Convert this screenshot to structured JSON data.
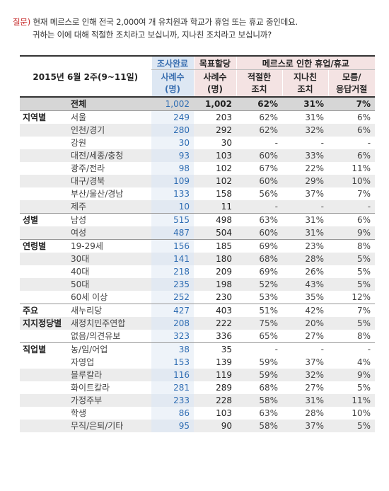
{
  "question": {
    "prefix": "질문)",
    "line1": "현재 메르스로 인해 전국 2,000여 개 유치원과 학교가 휴업 또는 휴교 중인데요.",
    "line2": "귀하는 이에 대해 적절한 조치라고 보십니까, 지나친 조치라고 보십니까?"
  },
  "header": {
    "date": "2015년 6월 2주(9~11일)",
    "col_done_top": "조사완료",
    "col_done_sub": "사례수",
    "col_done_unit": "(명)",
    "col_target_top": "목표할당",
    "col_target_sub": "사례수",
    "col_target_unit": "(명)",
    "group_title": "메르스로 인한 휴업/휴교",
    "resp1_a": "적절한",
    "resp1_b": "조치",
    "resp2_a": "지나친",
    "resp2_b": "조치",
    "resp3_a": "모름/",
    "resp3_b": "응답거절"
  },
  "rows": [
    {
      "group": "",
      "label": "전체",
      "n1": "1,002",
      "n2": "1,002",
      "p1": "62%",
      "p2": "31%",
      "p3": "7%"
    },
    {
      "group": "지역별",
      "label": "서울",
      "n1": "249",
      "n2": "203",
      "p1": "62%",
      "p2": "31%",
      "p3": "6%"
    },
    {
      "group": "",
      "label": "인천/경기",
      "n1": "280",
      "n2": "292",
      "p1": "62%",
      "p2": "32%",
      "p3": "6%"
    },
    {
      "group": "",
      "label": "강원",
      "n1": "30",
      "n2": "30",
      "p1": "-",
      "p2": "-",
      "p3": "-"
    },
    {
      "group": "",
      "label": "대전/세종/충청",
      "n1": "93",
      "n2": "103",
      "p1": "60%",
      "p2": "33%",
      "p3": "6%"
    },
    {
      "group": "",
      "label": "광주/전라",
      "n1": "98",
      "n2": "102",
      "p1": "67%",
      "p2": "22%",
      "p3": "11%"
    },
    {
      "group": "",
      "label": "대구/경북",
      "n1": "109",
      "n2": "102",
      "p1": "60%",
      "p2": "29%",
      "p3": "10%"
    },
    {
      "group": "",
      "label": "부산/울산/경남",
      "n1": "133",
      "n2": "158",
      "p1": "56%",
      "p2": "37%",
      "p3": "7%"
    },
    {
      "group": "",
      "label": "제주",
      "n1": "10",
      "n2": "11",
      "p1": "-",
      "p2": "-",
      "p3": "-"
    },
    {
      "group": "성별",
      "label": "남성",
      "n1": "515",
      "n2": "498",
      "p1": "63%",
      "p2": "31%",
      "p3": "6%"
    },
    {
      "group": "",
      "label": "여성",
      "n1": "487",
      "n2": "504",
      "p1": "60%",
      "p2": "31%",
      "p3": "9%"
    },
    {
      "group": "연령별",
      "label": "19-29세",
      "n1": "156",
      "n2": "185",
      "p1": "69%",
      "p2": "23%",
      "p3": "8%"
    },
    {
      "group": "",
      "label": "30대",
      "n1": "141",
      "n2": "180",
      "p1": "68%",
      "p2": "28%",
      "p3": "5%"
    },
    {
      "group": "",
      "label": "40대",
      "n1": "218",
      "n2": "209",
      "p1": "69%",
      "p2": "26%",
      "p3": "5%"
    },
    {
      "group": "",
      "label": "50대",
      "n1": "235",
      "n2": "198",
      "p1": "52%",
      "p2": "43%",
      "p3": "5%"
    },
    {
      "group": "",
      "label": "60세 이상",
      "n1": "252",
      "n2": "230",
      "p1": "53%",
      "p2": "35%",
      "p3": "12%"
    },
    {
      "group": "주요",
      "label": "새누리당",
      "n1": "427",
      "n2": "403",
      "p1": "51%",
      "p2": "42%",
      "p3": "7%"
    },
    {
      "group": "지지정당별",
      "label": "새정치민주연합",
      "n1": "208",
      "n2": "222",
      "p1": "75%",
      "p2": "20%",
      "p3": "5%"
    },
    {
      "group": "",
      "label": "없음/의견유보",
      "n1": "323",
      "n2": "336",
      "p1": "65%",
      "p2": "27%",
      "p3": "8%"
    },
    {
      "group": "직업별",
      "label": "농/임/어업",
      "n1": "38",
      "n2": "35",
      "p1": "-",
      "p2": "-",
      "p3": "-"
    },
    {
      "group": "",
      "label": "자영업",
      "n1": "153",
      "n2": "139",
      "p1": "59%",
      "p2": "37%",
      "p3": "4%"
    },
    {
      "group": "",
      "label": "블루칼라",
      "n1": "116",
      "n2": "119",
      "p1": "59%",
      "p2": "32%",
      "p3": "9%"
    },
    {
      "group": "",
      "label": "화이트칼라",
      "n1": "281",
      "n2": "289",
      "p1": "68%",
      "p2": "27%",
      "p3": "5%"
    },
    {
      "group": "",
      "label": "가정주부",
      "n1": "233",
      "n2": "228",
      "p1": "58%",
      "p2": "31%",
      "p3": "11%"
    },
    {
      "group": "",
      "label": "학생",
      "n1": "86",
      "n2": "103",
      "p1": "63%",
      "p2": "28%",
      "p3": "10%"
    },
    {
      "group": "",
      "label": "무직/은퇴/기타",
      "n1": "95",
      "n2": "90",
      "p1": "58%",
      "p2": "37%",
      "p3": "5%"
    }
  ],
  "row_styles": [
    "total",
    "",
    "alt",
    "",
    "alt",
    "",
    "alt",
    "",
    "alt",
    "sep",
    "alt",
    "sep",
    "alt",
    "",
    "alt",
    "",
    "sep",
    "alt",
    "",
    "sep",
    "",
    "alt",
    "",
    "alt",
    "",
    "alt"
  ]
}
